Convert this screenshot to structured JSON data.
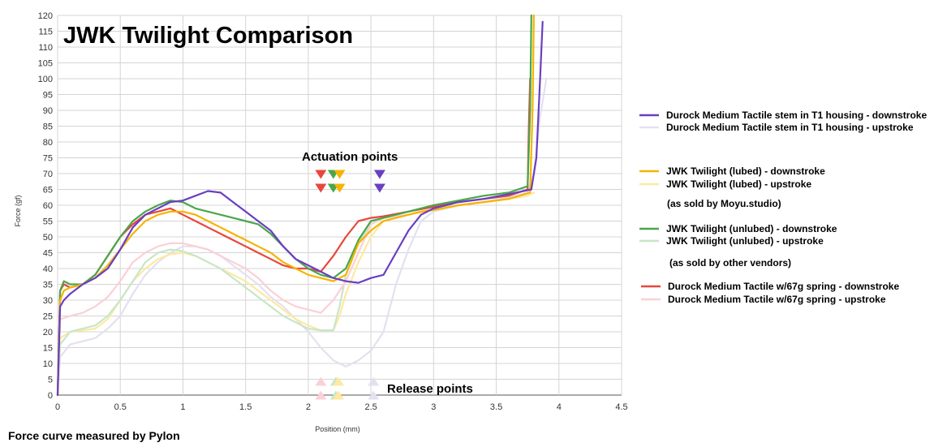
{
  "chart_data": {
    "type": "line",
    "title": "JWK Twilight Comparison",
    "xlabel": "Position (mm)",
    "ylabel": "Force (gf)",
    "xlim": [
      0,
      4.5
    ],
    "ylim": [
      0,
      120
    ],
    "x_ticks": [
      "0",
      "0.5",
      "1",
      "1.5",
      "2",
      "2.5",
      "3",
      "3.5",
      "4",
      "4.5"
    ],
    "y_ticks": [
      "0",
      "5",
      "10",
      "15",
      "20",
      "25",
      "30",
      "35",
      "40",
      "45",
      "50",
      "55",
      "60",
      "65",
      "70",
      "75",
      "80",
      "85",
      "90",
      "95",
      "100",
      "105",
      "110",
      "115",
      "120"
    ],
    "grid": true,
    "legend_position": "right",
    "series": [
      {
        "name": "Durock Medium Tactile stem in T1 housing - downstroke",
        "color": "#6a3fc1",
        "width": 2.2,
        "x": [
          0,
          0.02,
          0.05,
          0.1,
          0.2,
          0.3,
          0.4,
          0.5,
          0.6,
          0.7,
          0.8,
          0.9,
          1.0,
          1.1,
          1.2,
          1.3,
          1.4,
          1.5,
          1.6,
          1.7,
          1.8,
          1.9,
          2.0,
          2.1,
          2.2,
          2.3,
          2.4,
          2.5,
          2.6,
          2.7,
          2.8,
          2.9,
          3.0,
          3.2,
          3.4,
          3.6,
          3.78,
          3.82,
          3.85,
          3.87
        ],
        "y": [
          0,
          28,
          30,
          32,
          35,
          37,
          40,
          46,
          53,
          57,
          59,
          61,
          61.5,
          63,
          64.5,
          64,
          61,
          58,
          55,
          52,
          47,
          43,
          41,
          39,
          37,
          36,
          35.5,
          37,
          38,
          45,
          52,
          57,
          59,
          61,
          62,
          63.5,
          65,
          75,
          100,
          118
        ]
      },
      {
        "name": "Durock Medium Tactile stem in T1 housing - upstroke",
        "color": "#e3e1f0",
        "width": 2.2,
        "x": [
          0,
          0.02,
          0.1,
          0.2,
          0.3,
          0.4,
          0.5,
          0.6,
          0.7,
          0.8,
          0.9,
          1.0,
          1.1,
          1.2,
          1.3,
          1.4,
          1.5,
          1.6,
          1.7,
          1.8,
          1.9,
          2.0,
          2.1,
          2.2,
          2.3,
          2.4,
          2.5,
          2.6,
          2.7,
          2.8,
          2.9,
          3.0,
          3.2,
          3.4,
          3.6,
          3.75,
          3.8,
          3.85,
          3.9
        ],
        "y": [
          0,
          12,
          16,
          17,
          18,
          21,
          25,
          32,
          38,
          42,
          45,
          47,
          47,
          46,
          44,
          41,
          38,
          35,
          31,
          28,
          24,
          20,
          15,
          11,
          9,
          11,
          14,
          20,
          35,
          46,
          55,
          58,
          60,
          61,
          62.5,
          64,
          70,
          88,
          100
        ]
      },
      {
        "name": "JWK Twilight (lubed) - downstroke",
        "color": "#f5b400",
        "width": 2.2,
        "x": [
          0,
          0.02,
          0.05,
          0.1,
          0.2,
          0.3,
          0.4,
          0.5,
          0.6,
          0.7,
          0.8,
          0.9,
          1.0,
          1.1,
          1.2,
          1.3,
          1.4,
          1.5,
          1.6,
          1.7,
          1.8,
          1.9,
          2.0,
          2.1,
          2.2,
          2.3,
          2.4,
          2.5,
          2.6,
          2.7,
          2.8,
          2.9,
          3.0,
          3.2,
          3.4,
          3.6,
          3.77,
          3.79,
          3.8
        ],
        "y": [
          0,
          30,
          33,
          34,
          35,
          37,
          41,
          46,
          51,
          55,
          57,
          58,
          58,
          57,
          55,
          53,
          51,
          49,
          47,
          45,
          42,
          40,
          38,
          37,
          36,
          38,
          48,
          52,
          55,
          56,
          57,
          58,
          58.5,
          60,
          61,
          62,
          64,
          90,
          120
        ]
      },
      {
        "name": "JWK Twilight (lubed) - upstroke",
        "color": "#fde9a0",
        "width": 2.2,
        "x": [
          0,
          0.02,
          0.1,
          0.2,
          0.3,
          0.4,
          0.5,
          0.6,
          0.7,
          0.8,
          0.9,
          1.0,
          1.1,
          1.2,
          1.3,
          1.4,
          1.5,
          1.6,
          1.7,
          1.8,
          1.9,
          2.0,
          2.1,
          2.2,
          2.25,
          2.3,
          2.4,
          2.5,
          2.6,
          2.8,
          3.0,
          3.2,
          3.4,
          3.6,
          3.75,
          3.8
        ],
        "y": [
          0,
          18,
          20,
          20.5,
          21,
          24,
          30,
          36,
          40,
          43,
          44.5,
          45,
          44,
          42,
          40,
          38,
          36,
          33,
          30,
          27,
          24,
          22,
          20.5,
          20.5,
          25,
          32,
          42,
          50,
          55,
          57,
          58.5,
          60,
          61,
          62,
          63,
          64
        ]
      },
      {
        "name": "JWK Twilight (unlubed) - downstroke",
        "color": "#4aa64a",
        "width": 2.2,
        "x": [
          0,
          0.02,
          0.05,
          0.1,
          0.2,
          0.3,
          0.4,
          0.5,
          0.6,
          0.7,
          0.8,
          0.9,
          1.0,
          1.1,
          1.2,
          1.3,
          1.4,
          1.5,
          1.6,
          1.7,
          1.8,
          1.9,
          2.0,
          2.1,
          2.2,
          2.3,
          2.4,
          2.5,
          2.6,
          2.8,
          3.0,
          3.2,
          3.4,
          3.6,
          3.75,
          3.77,
          3.78
        ],
        "y": [
          0,
          33,
          36,
          35,
          35,
          38,
          44,
          50,
          55,
          58,
          60,
          61.5,
          61,
          59,
          58,
          57,
          56,
          55,
          54,
          51,
          47,
          43,
          40,
          38,
          37,
          40,
          49,
          55,
          56,
          58,
          60,
          61.5,
          63,
          64,
          66,
          90,
          120
        ]
      },
      {
        "name": "JWK Twilight (unlubed) - upstroke",
        "color": "#c8e6c8",
        "width": 2.2,
        "x": [
          0,
          0.02,
          0.1,
          0.2,
          0.3,
          0.4,
          0.5,
          0.6,
          0.7,
          0.8,
          0.9,
          1.0,
          1.1,
          1.2,
          1.3,
          1.4,
          1.5,
          1.6,
          1.7,
          1.8,
          1.9,
          2.0,
          2.1,
          2.2,
          2.25,
          2.3,
          2.4,
          2.5,
          2.6,
          2.8,
          3.0,
          3.2,
          3.4,
          3.6,
          3.75
        ],
        "y": [
          0,
          16,
          20,
          21,
          22,
          25,
          30,
          36,
          42,
          45,
          46,
          45.5,
          44,
          42,
          40,
          37,
          34,
          31,
          28,
          25,
          23,
          21,
          20.5,
          20.5,
          28,
          38,
          48,
          54,
          56,
          58,
          60,
          61,
          62,
          63,
          65
        ]
      },
      {
        "name": "Durock Medium Tactile w/67g spring - downstroke",
        "color": "#e8473b",
        "width": 2.2,
        "x": [
          0,
          0.02,
          0.05,
          0.1,
          0.2,
          0.3,
          0.4,
          0.5,
          0.6,
          0.7,
          0.8,
          0.9,
          1.0,
          1.1,
          1.2,
          1.3,
          1.4,
          1.5,
          1.6,
          1.7,
          1.8,
          1.9,
          2.0,
          2.1,
          2.2,
          2.3,
          2.4,
          2.5,
          2.6,
          2.8,
          3.0,
          3.2,
          3.4,
          3.6,
          3.75,
          3.76,
          3.77
        ],
        "y": [
          0,
          33,
          35,
          34,
          35,
          38,
          44,
          50,
          54,
          57,
          58,
          59,
          57,
          55,
          53,
          51,
          49,
          47,
          45,
          43,
          41,
          40,
          40,
          39,
          44,
          50,
          55,
          56,
          56.5,
          58,
          59.5,
          61,
          62,
          63,
          65,
          85,
          100
        ]
      },
      {
        "name": "Durock Medium Tactile w/67g spring - upstroke",
        "color": "#fad0d6",
        "width": 2.2,
        "x": [
          0,
          0.02,
          0.1,
          0.2,
          0.3,
          0.4,
          0.5,
          0.6,
          0.7,
          0.8,
          0.9,
          1.0,
          1.1,
          1.2,
          1.3,
          1.4,
          1.5,
          1.6,
          1.7,
          1.8,
          1.9,
          2.0,
          2.1,
          2.2,
          2.3,
          2.4,
          2.5,
          2.6,
          2.8,
          3.0,
          3.2,
          3.4,
          3.6,
          3.75
        ],
        "y": [
          0,
          24,
          25,
          26,
          28,
          31,
          36,
          42,
          45,
          47,
          48,
          48,
          47,
          46,
          44,
          42,
          40,
          37,
          33,
          30,
          28,
          27,
          26,
          30,
          36,
          45,
          54,
          56,
          57,
          59,
          60,
          61,
          62,
          64
        ]
      }
    ],
    "annotations": {
      "actuation_label": "Actuation points",
      "release_label": "Release points",
      "actuation_markers": [
        {
          "x": 2.1,
          "color": "#e8473b"
        },
        {
          "x": 2.2,
          "color": "#4aa64a"
        },
        {
          "x": 2.25,
          "color": "#f5b400"
        },
        {
          "x": 2.57,
          "color": "#6a3fc1"
        }
      ],
      "release_markers": [
        {
          "x": 2.1,
          "color": "#fad0d6"
        },
        {
          "x": 2.22,
          "color": "#c8e6c8"
        },
        {
          "x": 2.24,
          "color": "#fde9a0"
        },
        {
          "x": 2.52,
          "color": "#e3e1f0"
        }
      ]
    }
  },
  "legend_notes": {
    "lubed": "(as sold by Moyu.studio)",
    "unlubed": "(as sold by other vendors)"
  },
  "footnote": "Force curve measured by Pylon"
}
